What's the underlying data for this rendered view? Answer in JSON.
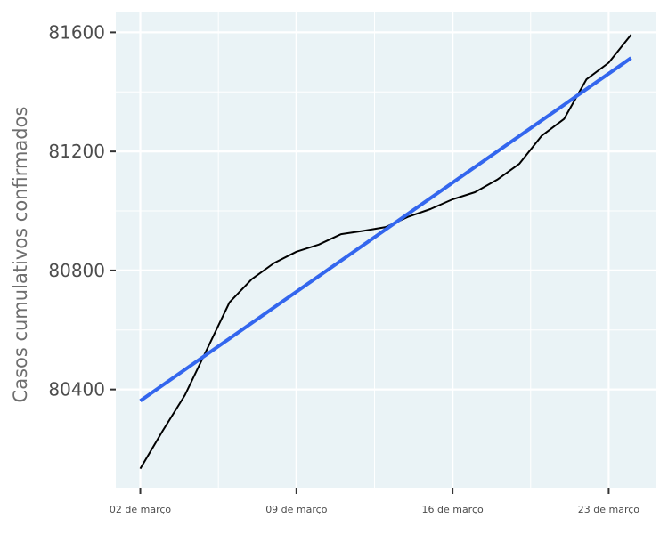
{
  "chart_data": {
    "type": "line",
    "xlabel": "",
    "ylabel": "Casos cumulativos confirmados",
    "x_tick_labels": [
      "02 de março",
      "09 de março",
      "16 de março",
      "23 de março"
    ],
    "x_tick_days": [
      2,
      9,
      16,
      23
    ],
    "y_ticks": [
      80400,
      80800,
      81200,
      81600
    ],
    "xlim": [
      0.9,
      25.1
    ],
    "ylim": [
      80070,
      81667
    ],
    "grid": true,
    "series": [
      {
        "kind": "observed",
        "color": "#000000",
        "x": [
          2,
          3,
          4,
          5,
          6,
          7,
          8,
          9,
          10,
          11,
          12,
          13,
          14,
          15,
          16,
          17,
          18,
          19,
          20,
          21,
          22,
          23,
          24
        ],
        "y": [
          80134,
          80261,
          80381,
          80537,
          80693,
          80771,
          80825,
          80863,
          80887,
          80922,
          80933,
          80946,
          80980,
          81006,
          81039,
          81063,
          81105,
          81159,
          81253,
          81309,
          81442,
          81498,
          81592
        ]
      },
      {
        "kind": "linear-fit",
        "color": "#3366ee",
        "x": [
          2,
          24
        ],
        "y": [
          80362,
          81514
        ]
      }
    ],
    "background_color": "#eaf3f6",
    "grid_color": "#ffffff"
  }
}
